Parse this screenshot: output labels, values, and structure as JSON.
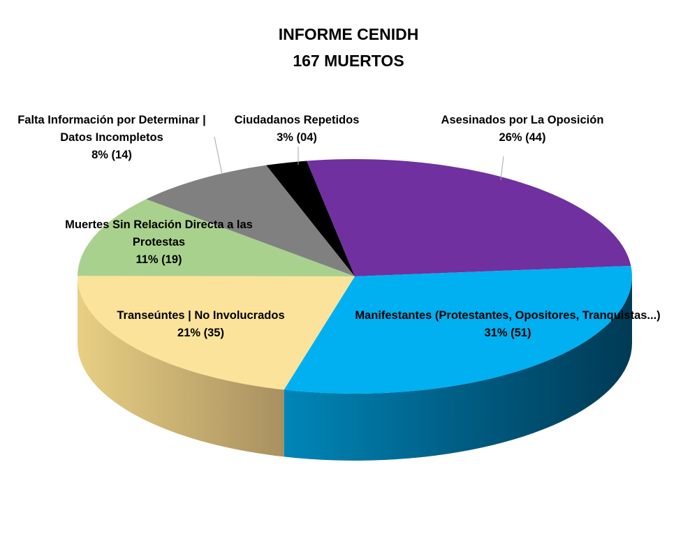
{
  "chart_data": {
    "type": "pie",
    "title": "INFORME CENIDH",
    "subtitle": "167 MUERTOS",
    "categories": [
      "Asesinados por La Oposición",
      "Manifestantes (Protestantes, Opositores, Tranquistas...)",
      "Transeúntes | No Involucrados",
      "Muertes Sin Relación Directa a las Protestas",
      "Falta Información por Determinar | Datos Incompletos",
      "Ciudadanos Repetidos"
    ],
    "values": [
      44,
      51,
      35,
      19,
      14,
      4
    ],
    "value_labels": [
      "26% (44)",
      "31% (51)",
      "21% (35)",
      "11% (19)",
      "8% (14)",
      "3% (04)"
    ],
    "colors": [
      "#7030a0",
      "#00b0f0",
      "#fbe39b",
      "#a9d18e",
      "#808080",
      "#000000"
    ]
  }
}
